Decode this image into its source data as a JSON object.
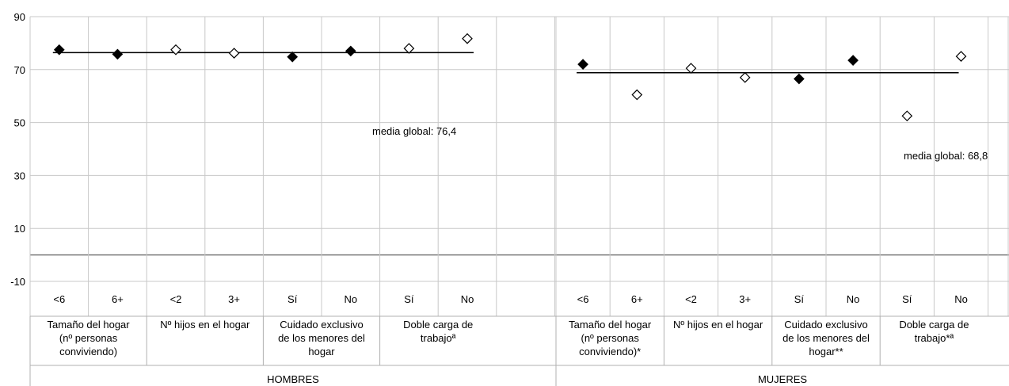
{
  "chart_data": {
    "type": "scatter",
    "ylim": [
      -10,
      90
    ],
    "yticks": [
      -10,
      10,
      30,
      50,
      70,
      90
    ],
    "grid": true,
    "marker_legend": {
      "filled": "filled diamond",
      "hollow": "hollow diamond"
    },
    "panels": [
      {
        "label": "HOMBRES",
        "mean_label": "media global: 76,4",
        "mean": 76.4,
        "groups": [
          {
            "label": "Tamaño del hogar (nº personas conviviendo)",
            "lines": [
              "Tamaño del hogar",
              "(nº personas",
              "conviviendo)"
            ]
          },
          {
            "label": "Nº hijos en el hogar",
            "lines": [
              "Nº hijos en el hogar"
            ]
          },
          {
            "label": "Cuidado exclusivo de los menores del hogar",
            "lines": [
              "Cuidado exclusivo",
              "de los menores del",
              "hogar"
            ]
          },
          {
            "label": "Doble carga de trabajoª",
            "lines": [
              "Doble carga de",
              "trabajoª"
            ]
          }
        ],
        "categories": [
          "<6",
          "6+",
          "<2",
          "3+",
          "Sí",
          "No",
          "Sí",
          "No"
        ],
        "values": [
          77.5,
          75.8,
          77.5,
          76.2,
          74.8,
          77.0,
          78.0,
          81.7
        ],
        "filled": [
          true,
          true,
          false,
          false,
          true,
          true,
          false,
          false
        ]
      },
      {
        "label": "MUJERES",
        "mean_label": "media global: 68,8",
        "mean": 68.8,
        "groups": [
          {
            "label": "Tamaño del hogar (nº personas conviviendo)*",
            "lines": [
              "Tamaño del hogar",
              "(nº personas",
              "conviviendo)*"
            ]
          },
          {
            "label": "Nº hijos en el hogar",
            "lines": [
              "Nº hijos en el hogar"
            ]
          },
          {
            "label": "Cuidado exclusivo de los menores del hogar**",
            "lines": [
              "Cuidado exclusivo",
              "de los menores del",
              "hogar**"
            ]
          },
          {
            "label": "Doble carga de trabajo*ª",
            "lines": [
              "Doble carga de",
              "trabajo*ª"
            ]
          }
        ],
        "categories": [
          "<6",
          "6+",
          "<2",
          "3+",
          "Sí",
          "No",
          "Sí",
          "No"
        ],
        "values": [
          72.0,
          60.5,
          70.5,
          67.0,
          66.5,
          73.5,
          52.5,
          75.0
        ],
        "filled": [
          true,
          false,
          false,
          false,
          true,
          true,
          false,
          false
        ]
      }
    ]
  }
}
